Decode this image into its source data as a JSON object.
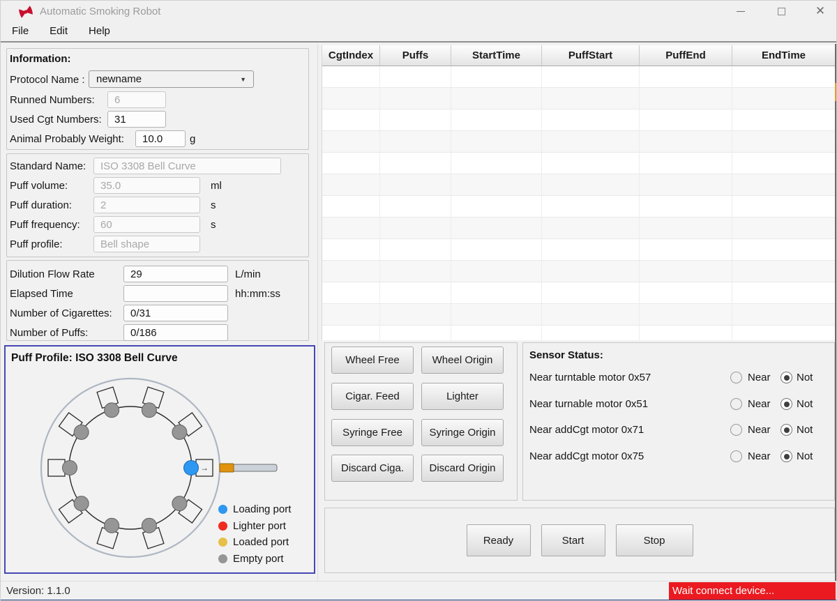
{
  "window": {
    "title": "Automatic Smoking Robot",
    "version_label": "Version: 1.1.0",
    "status_message": "Wait connect device..."
  },
  "menu": {
    "items": [
      "File",
      "Edit",
      "Help"
    ]
  },
  "information": {
    "title": "Information:",
    "protocol_name": {
      "label": "Protocol Name :",
      "value": "newname"
    },
    "runned_numbers": {
      "label": "Runned Numbers:",
      "value": "6"
    },
    "used_cgt_numbers": {
      "label": "Used Cgt  Numbers:",
      "value": "31"
    },
    "animal_weight": {
      "label": "Animal Probably  Weight:",
      "value": "10.0",
      "unit": "g"
    }
  },
  "standard": {
    "standard_name": {
      "label": "Standard Name:",
      "value": "ISO 3308 Bell Curve"
    },
    "puff_volume": {
      "label": "Puff volume:",
      "value": "35.0",
      "unit": "ml"
    },
    "puff_duration": {
      "label": "Puff duration:",
      "value": "2",
      "unit": "s"
    },
    "puff_frequency": {
      "label": "Puff frequency:",
      "value": "60",
      "unit": "s"
    },
    "puff_profile": {
      "label": "Puff profile:",
      "value": "Bell shape"
    }
  },
  "runtime": {
    "dilution_flow_rate": {
      "label": "Dilution Flow Rate",
      "value": "29",
      "unit": "L/min"
    },
    "elapsed_time": {
      "label": "Elapsed Time",
      "value": "",
      "unit": "hh:mm:ss"
    },
    "number_of_cigarettes": {
      "label": "Number of Cigarettes:",
      "value": "0/31"
    },
    "number_of_puffs": {
      "label": "Number of Puffs:",
      "value": "0/186"
    }
  },
  "puff_profile_panel": {
    "title": "Puff Profile:  ISO 3308 Bell Curve",
    "diagram": {
      "port_count": 10,
      "ports": [
        {
          "angle_deg": 0,
          "state": "loading",
          "arrow": "→"
        },
        {
          "angle_deg": 36,
          "state": "empty"
        },
        {
          "angle_deg": 72,
          "state": "empty"
        },
        {
          "angle_deg": 108,
          "state": "empty"
        },
        {
          "angle_deg": 144,
          "state": "empty"
        },
        {
          "angle_deg": 180,
          "state": "empty"
        },
        {
          "angle_deg": 216,
          "state": "empty"
        },
        {
          "angle_deg": 252,
          "state": "empty"
        },
        {
          "angle_deg": 288,
          "state": "empty"
        },
        {
          "angle_deg": 324,
          "state": "empty"
        }
      ],
      "state_colors": {
        "loading": "#2e97f2",
        "lighter": "#f02b20",
        "loaded": "#e6c04a",
        "empty": "#969696"
      },
      "cigarette_shown": true
    },
    "legend": [
      {
        "label": "Loading port",
        "color": "#2e97f2"
      },
      {
        "label": "Lighter port",
        "color": "#f02b20"
      },
      {
        "label": "Loaded port",
        "color": "#e6c04a"
      },
      {
        "label": "Empty port",
        "color": "#969696"
      }
    ]
  },
  "table": {
    "columns": [
      "CgtIndex",
      "Puffs",
      "StartTime",
      "PuffStart",
      "PuffEnd",
      "EndTime"
    ],
    "rows": [],
    "visible_empty_rows": 13
  },
  "controls": {
    "buttons": [
      "Wheel Free",
      "Wheel Origin",
      "Cigar. Feed",
      "Lighter",
      "Syringe Free",
      "Syringe Origin",
      "Discard Ciga.",
      "Discard Origin"
    ]
  },
  "sensors": {
    "title": "Sensor Status:",
    "near_label": "Near",
    "not_label": "Not",
    "rows": [
      {
        "label": "Near turntable motor 0x57",
        "selected": "not"
      },
      {
        "label": "Near turnable motor 0x51",
        "selected": "not"
      },
      {
        "label": "Near addCgt motor 0x71",
        "selected": "not"
      },
      {
        "label": "Near addCgt motor 0x75",
        "selected": "not"
      }
    ]
  },
  "actions": {
    "buttons": [
      "Ready",
      "Start",
      "Stop"
    ]
  }
}
